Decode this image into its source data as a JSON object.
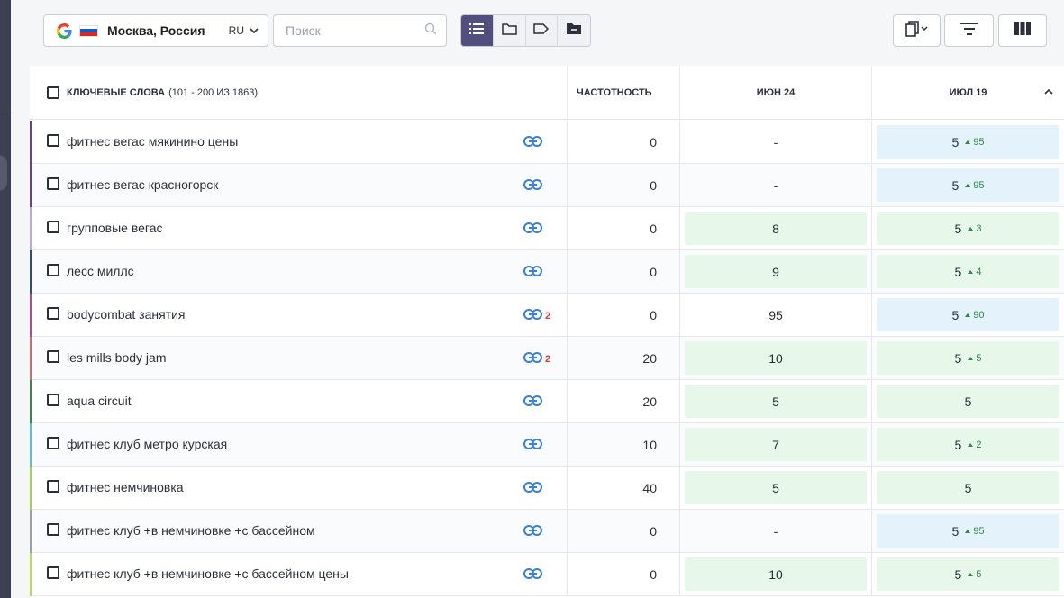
{
  "toolbar": {
    "region": {
      "name": "Москва, Россия",
      "lang": "RU"
    },
    "search": {
      "placeholder": "Поиск"
    }
  },
  "table": {
    "header": {
      "keywords_label": "КЛЮЧЕВЫЕ СЛОВА",
      "keywords_count": "(101 - 200 ИЗ 1863)",
      "frequency": "ЧАСТОТНОСТЬ",
      "date1": "ИЮН 24",
      "date2": "ИЮЛ 19"
    },
    "rows": [
      {
        "keyword": "фитнес вегас мякинино цены",
        "links": "",
        "freq": "0",
        "d1": "-",
        "d1_style": "plain",
        "d2": "5",
        "d2_delta": "95",
        "d2_style": "blue",
        "stripe": "#6a3f8f"
      },
      {
        "keyword": "фитнес вегас красногорск",
        "links": "",
        "freq": "0",
        "d1": "-",
        "d1_style": "plain",
        "d2": "5",
        "d2_delta": "95",
        "d2_style": "blue",
        "stripe": "#6a3f8f"
      },
      {
        "keyword": "групповые вегас",
        "links": "",
        "freq": "0",
        "d1": "8",
        "d1_style": "green",
        "d2": "5",
        "d2_delta": "3",
        "d2_style": "green",
        "stripe": "#b9a7de"
      },
      {
        "keyword": "лесс миллс",
        "links": "",
        "freq": "0",
        "d1": "9",
        "d1_style": "green",
        "d2": "5",
        "d2_delta": "4",
        "d2_style": "green",
        "stripe": "#2a4f7d"
      },
      {
        "keyword": "bodycombat занятия",
        "links": "2",
        "freq": "0",
        "d1": "95",
        "d1_style": "plain",
        "d2": "5",
        "d2_delta": "90",
        "d2_style": "blue",
        "stripe": "#c23f9a"
      },
      {
        "keyword": "les mills body jam",
        "links": "2",
        "freq": "20",
        "d1": "10",
        "d1_style": "green",
        "d2": "5",
        "d2_delta": "5",
        "d2_style": "green",
        "stripe": "#e0646d"
      },
      {
        "keyword": "aqua circuit",
        "links": "",
        "freq": "20",
        "d1": "5",
        "d1_style": "green",
        "d2": "5",
        "d2_delta": "",
        "d2_style": "green",
        "stripe": "#3a8a3e"
      },
      {
        "keyword": "фитнес клуб метро курская",
        "links": "",
        "freq": "10",
        "d1": "7",
        "d1_style": "green",
        "d2": "5",
        "d2_delta": "2",
        "d2_style": "green",
        "stripe": "#4fc3dd"
      },
      {
        "keyword": "фитнес немчиновка",
        "links": "",
        "freq": "40",
        "d1": "5",
        "d1_style": "green",
        "d2": "5",
        "d2_delta": "",
        "d2_style": "green",
        "stripe": "#9ed84a"
      },
      {
        "keyword": "фитнес клуб +в немчиновке +с бассейном",
        "links": "",
        "freq": "0",
        "d1": "-",
        "d1_style": "plain",
        "d2": "5",
        "d2_delta": "95",
        "d2_style": "blue",
        "stripe": "#9aa0aa"
      },
      {
        "keyword": "фитнес клуб +в немчиновке +с бассейном цены",
        "links": "",
        "freq": "0",
        "d1": "10",
        "d1_style": "green",
        "d2": "5",
        "d2_delta": "5",
        "d2_style": "green",
        "stripe": "#b6e04a"
      }
    ]
  }
}
